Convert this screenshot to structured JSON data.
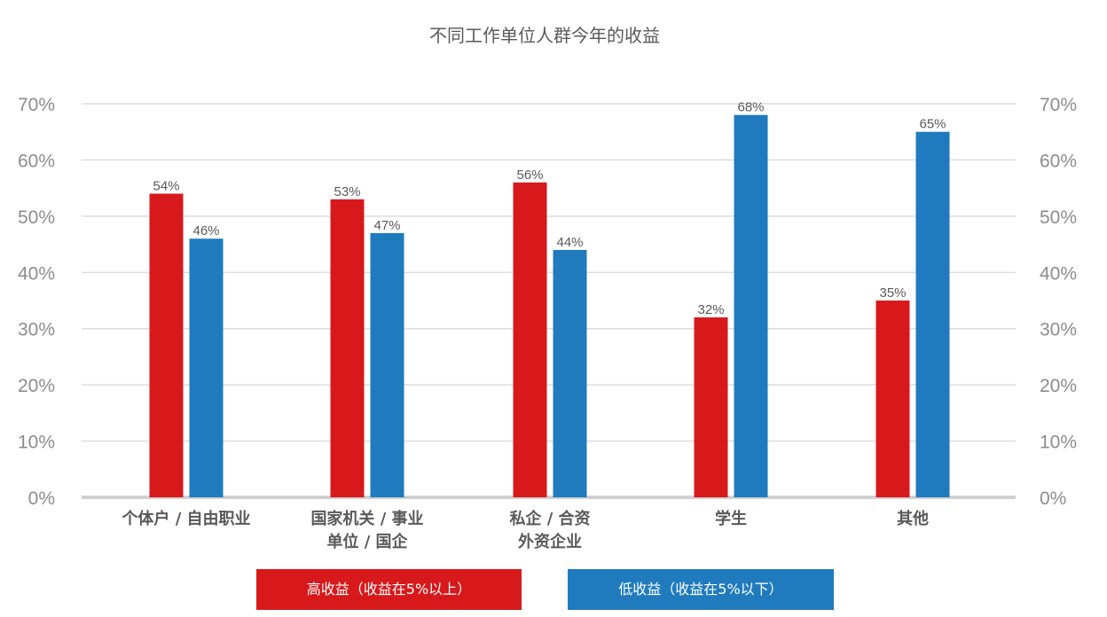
{
  "chart_data": {
    "type": "bar",
    "title": "不同工作单位人群今年的收益",
    "categories": [
      [
        "个体户 / 自由职业"
      ],
      [
        "国家机关 / 事业",
        "单位 / 国企"
      ],
      [
        "私企 / 合资",
        "外资企业"
      ],
      [
        "学生"
      ],
      [
        "其他"
      ]
    ],
    "series": [
      {
        "name": "高收益（收益在5%以上）",
        "color": "#d7191c",
        "values": [
          54,
          53,
          56,
          32,
          35
        ],
        "labels": [
          "54%",
          "53%",
          "56%",
          "32%",
          "35%"
        ]
      },
      {
        "name": "低收益（收益在5%以下）",
        "color": "#1f7bbd",
        "values": [
          46,
          47,
          44,
          68,
          65
        ],
        "labels": [
          "46%",
          "47%",
          "44%",
          "68%",
          "65%"
        ]
      }
    ],
    "ylim": [
      0,
      70
    ],
    "yticks": [
      0,
      10,
      20,
      30,
      40,
      50,
      60,
      70
    ],
    "ytick_labels": [
      "0%",
      "10%",
      "20%",
      "30%",
      "40%",
      "50%",
      "60%",
      "70%"
    ],
    "secondary_axis": true,
    "grid": true,
    "legend_position": "bottom"
  }
}
